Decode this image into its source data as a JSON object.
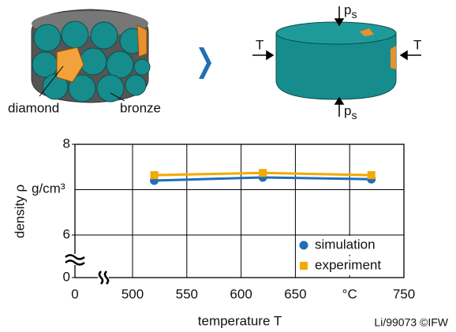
{
  "illustration": {
    "diamond_label": "diamond",
    "bronze_label": "bronze",
    "force_label": "T",
    "pressure_label": {
      "main": "p",
      "sub": "s"
    }
  },
  "chart_data": {
    "type": "line",
    "y_label": "density ρ",
    "y_unit": "g/cm³",
    "x_label": "temperature T",
    "credit": "Li/99073 ©IFW",
    "x": [
      520,
      620,
      720
    ],
    "series": [
      {
        "name": "simulation",
        "color": "#1f6fb8",
        "marker": "circle",
        "values": [
          7.2,
          7.27,
          7.23
        ]
      },
      {
        "name": "experiment",
        "color": "#f2a900",
        "marker": "square",
        "values": [
          7.32,
          7.37,
          7.32
        ]
      }
    ],
    "xlim": [
      500,
      750
    ],
    "xticks": [
      0,
      500,
      550,
      600,
      650,
      {
        "value": 700,
        "label": "°C"
      },
      750
    ],
    "ylim": [
      6,
      8
    ],
    "yticks": [
      0,
      6,
      8
    ],
    "y_grid": [
      7
    ],
    "axis_break": true,
    "grid": true,
    "legend": "lower right"
  }
}
